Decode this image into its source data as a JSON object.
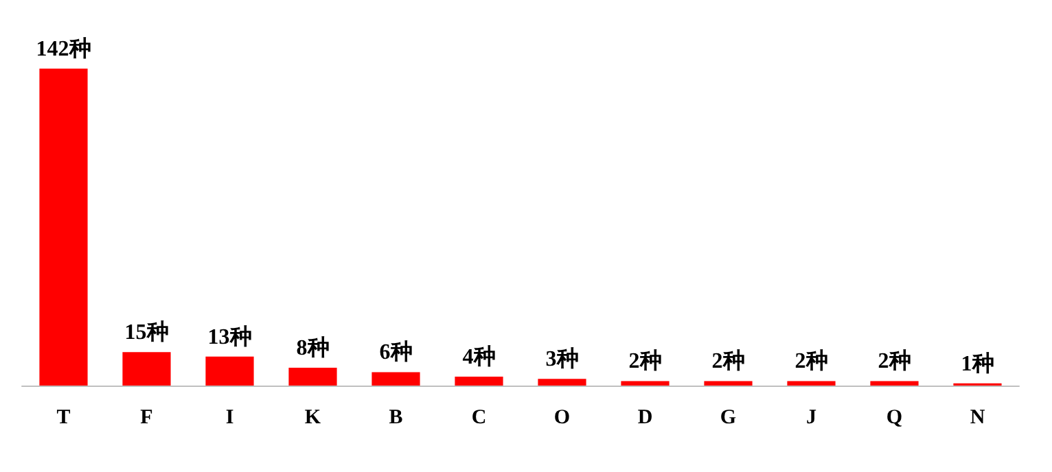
{
  "chart_data": {
    "type": "bar",
    "categories": [
      "T",
      "F",
      "I",
      "K",
      "B",
      "C",
      "O",
      "D",
      "G",
      "J",
      "Q",
      "N"
    ],
    "values": [
      142,
      15,
      13,
      8,
      6,
      4,
      3,
      2,
      2,
      2,
      2,
      1
    ],
    "value_labels": [
      "142种",
      "15种",
      "13种",
      "8种",
      "6种",
      "4种",
      "3种",
      "2种",
      "2种",
      "2种",
      "2种",
      "1种"
    ],
    "color": "#ff0000"
  }
}
